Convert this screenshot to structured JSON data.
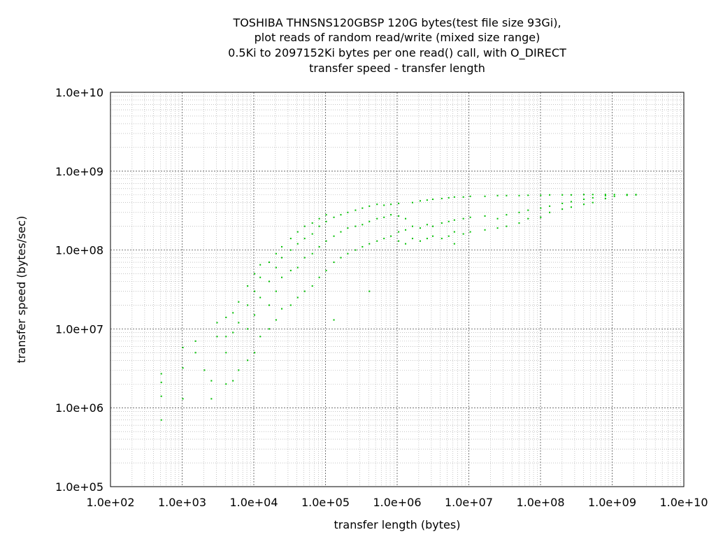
{
  "chart_data": {
    "type": "scatter",
    "title_lines": [
      "TOSHIBA THNSNS120GBSP 120G bytes(test file size 93Gi),",
      "plot reads of random read/write (mixed size range)",
      "0.5Ki to 2097152Ki bytes per one read() call, with O_DIRECT",
      "transfer speed - transfer length"
    ],
    "xlabel": "transfer length (bytes)",
    "ylabel": "transfer speed (bytes/sec)",
    "x_scale": "log",
    "y_scale": "log",
    "xlim": [
      100,
      10000000000
    ],
    "ylim": [
      100000,
      10000000000
    ],
    "x_ticks": [
      "1.0e+02",
      "1.0e+03",
      "1.0e+04",
      "1.0e+05",
      "1.0e+06",
      "1.0e+07",
      "1.0e+08",
      "1.0e+09",
      "1.0e+10"
    ],
    "y_ticks": [
      "1.0e+10",
      "1.0e+09",
      "1.0e+08",
      "1.0e+07",
      "1.0e+06",
      "1.0e+05"
    ],
    "grid": true,
    "legend": "none",
    "series_color": "#00c000",
    "series": [
      {
        "points": [
          [
            512,
            700000
          ],
          [
            512,
            1400000
          ],
          [
            512,
            2100000
          ],
          [
            512,
            2700000
          ],
          [
            1024,
            1300000
          ],
          [
            1024,
            3200000
          ],
          [
            1024,
            5800000
          ],
          [
            1536,
            5000000
          ],
          [
            1536,
            7000000
          ],
          [
            2048,
            3000000
          ],
          [
            2560,
            1300000
          ],
          [
            2560,
            2200000
          ],
          [
            3072,
            8000000
          ],
          [
            3072,
            12000000
          ],
          [
            4096,
            2000000
          ],
          [
            4096,
            5000000
          ],
          [
            4096,
            8000000
          ],
          [
            4096,
            14000000
          ],
          [
            5120,
            2200000
          ],
          [
            5120,
            9000000
          ],
          [
            5120,
            16000000
          ],
          [
            6144,
            3000000
          ],
          [
            6144,
            12000000
          ],
          [
            6144,
            22000000
          ],
          [
            8192,
            4000000
          ],
          [
            8192,
            10000000
          ],
          [
            8192,
            20000000
          ],
          [
            8192,
            35000000
          ],
          [
            10240,
            5000000
          ],
          [
            10240,
            15000000
          ],
          [
            10240,
            30000000
          ],
          [
            10240,
            50000000
          ],
          [
            12288,
            8000000
          ],
          [
            12288,
            25000000
          ],
          [
            12288,
            45000000
          ],
          [
            12288,
            65000000
          ],
          [
            16384,
            10000000
          ],
          [
            16384,
            20000000
          ],
          [
            16384,
            40000000
          ],
          [
            16384,
            70000000
          ],
          [
            20480,
            13000000
          ],
          [
            20480,
            30000000
          ],
          [
            20480,
            60000000
          ],
          [
            20480,
            90000000
          ],
          [
            24576,
            18000000
          ],
          [
            24576,
            45000000
          ],
          [
            24576,
            80000000
          ],
          [
            24576,
            110000000
          ],
          [
            32768,
            20000000
          ],
          [
            32768,
            55000000
          ],
          [
            32768,
            100000000
          ],
          [
            32768,
            140000000
          ],
          [
            40960,
            25000000
          ],
          [
            40960,
            60000000
          ],
          [
            40960,
            120000000
          ],
          [
            40960,
            170000000
          ],
          [
            51200,
            30000000
          ],
          [
            51200,
            80000000
          ],
          [
            51200,
            140000000
          ],
          [
            51200,
            200000000
          ],
          [
            65536,
            35000000
          ],
          [
            65536,
            90000000
          ],
          [
            65536,
            160000000
          ],
          [
            65536,
            220000000
          ],
          [
            81920,
            45000000
          ],
          [
            81920,
            110000000
          ],
          [
            81920,
            200000000
          ],
          [
            81920,
            250000000
          ],
          [
            102400,
            55000000
          ],
          [
            102400,
            130000000
          ],
          [
            102400,
            230000000
          ],
          [
            102400,
            280000000
          ],
          [
            131072,
            13000000
          ],
          [
            131072,
            70000000
          ],
          [
            131072,
            150000000
          ],
          [
            131072,
            260000000
          ],
          [
            163840,
            80000000
          ],
          [
            163840,
            170000000
          ],
          [
            163840,
            280000000
          ],
          [
            204800,
            90000000
          ],
          [
            204800,
            190000000
          ],
          [
            204800,
            300000000
          ],
          [
            262144,
            100000000
          ],
          [
            262144,
            200000000
          ],
          [
            262144,
            320000000
          ],
          [
            327680,
            110000000
          ],
          [
            327680,
            210000000
          ],
          [
            327680,
            340000000
          ],
          [
            409600,
            30000000
          ],
          [
            409600,
            120000000
          ],
          [
            409600,
            230000000
          ],
          [
            409600,
            360000000
          ],
          [
            524288,
            130000000
          ],
          [
            524288,
            250000000
          ],
          [
            524288,
            380000000
          ],
          [
            655360,
            140000000
          ],
          [
            655360,
            260000000
          ],
          [
            655360,
            370000000
          ],
          [
            819200,
            150000000
          ],
          [
            819200,
            280000000
          ],
          [
            819200,
            380000000
          ],
          [
            1048576,
            130000000
          ],
          [
            1048576,
            170000000
          ],
          [
            1048576,
            270000000
          ],
          [
            1048576,
            390000000
          ],
          [
            1310720,
            120000000
          ],
          [
            1310720,
            180000000
          ],
          [
            1310720,
            250000000
          ],
          [
            1638400,
            140000000
          ],
          [
            1638400,
            200000000
          ],
          [
            1638400,
            400000000
          ],
          [
            2097152,
            130000000
          ],
          [
            2097152,
            190000000
          ],
          [
            2097152,
            420000000
          ],
          [
            2621440,
            140000000
          ],
          [
            2621440,
            210000000
          ],
          [
            2621440,
            430000000
          ],
          [
            3145728,
            150000000
          ],
          [
            3145728,
            200000000
          ],
          [
            3145728,
            440000000
          ],
          [
            4194304,
            140000000
          ],
          [
            4194304,
            220000000
          ],
          [
            4194304,
            450000000
          ],
          [
            5242880,
            150000000
          ],
          [
            5242880,
            230000000
          ],
          [
            5242880,
            460000000
          ],
          [
            6291456,
            120000000
          ],
          [
            6291456,
            170000000
          ],
          [
            6291456,
            240000000
          ],
          [
            6291456,
            470000000
          ],
          [
            8388608,
            160000000
          ],
          [
            8388608,
            250000000
          ],
          [
            8388608,
            470000000
          ],
          [
            10485760,
            170000000
          ],
          [
            10485760,
            260000000
          ],
          [
            10485760,
            480000000
          ],
          [
            16777216,
            180000000
          ],
          [
            16777216,
            270000000
          ],
          [
            16777216,
            480000000
          ],
          [
            25165824,
            190000000
          ],
          [
            25165824,
            250000000
          ],
          [
            25165824,
            490000000
          ],
          [
            33554432,
            200000000
          ],
          [
            33554432,
            280000000
          ],
          [
            33554432,
            490000000
          ],
          [
            50331648,
            220000000
          ],
          [
            50331648,
            300000000
          ],
          [
            50331648,
            490000000
          ],
          [
            67108864,
            250000000
          ],
          [
            67108864,
            320000000
          ],
          [
            67108864,
            495000000
          ],
          [
            100663296,
            260000000
          ],
          [
            100663296,
            340000000
          ],
          [
            100663296,
            495000000
          ],
          [
            134217728,
            300000000
          ],
          [
            134217728,
            360000000
          ],
          [
            134217728,
            500000000
          ],
          [
            201326592,
            330000000
          ],
          [
            201326592,
            390000000
          ],
          [
            201326592,
            500000000
          ],
          [
            268435456,
            350000000
          ],
          [
            268435456,
            410000000
          ],
          [
            268435456,
            500000000
          ],
          [
            402653184,
            380000000
          ],
          [
            402653184,
            440000000
          ],
          [
            402653184,
            505000000
          ],
          [
            536870912,
            400000000
          ],
          [
            536870912,
            460000000
          ],
          [
            536870912,
            505000000
          ],
          [
            805306368,
            450000000
          ],
          [
            805306368,
            490000000
          ],
          [
            805306368,
            505000000
          ],
          [
            1073741824,
            480000000
          ],
          [
            1073741824,
            505000000
          ],
          [
            1610612736,
            495000000
          ],
          [
            1610612736,
            505000000
          ],
          [
            2147483648,
            500000000
          ],
          [
            2147483648,
            505000000
          ]
        ]
      }
    ]
  }
}
